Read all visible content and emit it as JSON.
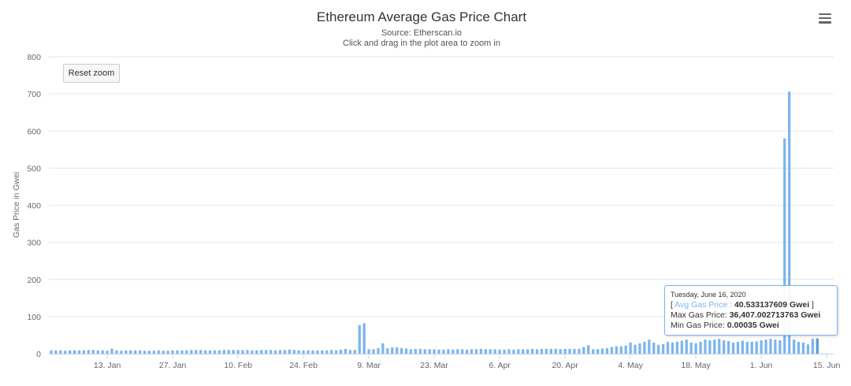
{
  "menu": {
    "icon": "hamburger-menu-icon"
  },
  "reset_zoom_label": "Reset zoom",
  "tooltip": {
    "date": "Tuesday, June 16, 2020",
    "open_bracket": "[",
    "series_name": "Avg Gas Price",
    "sep": ":",
    "avg_value": "40.533137609 Gwei",
    "close_bracket": "]",
    "max_label": "Max Gas Price:",
    "max_value": "36,407.002713763 Gwei",
    "min_label": "Min Gas Price:",
    "min_value": "0.00035 Gwei"
  },
  "chart_data": {
    "type": "bar",
    "title": "Ethereum Average Gas Price Chart",
    "subtitle": "Source: Etherscan.io",
    "subtitle2": "Click and drag in the plot area to zoom in",
    "ylabel": "Gas Price in Gwei",
    "ylim": [
      0,
      800
    ],
    "yticks": [
      0,
      100,
      200,
      300,
      400,
      500,
      600,
      700,
      800
    ],
    "grid": true,
    "legend": "none",
    "bar_color": "#7cb5ec",
    "x_start": "2020-01-01",
    "x_end": "2020-06-17",
    "xticks": [
      {
        "date": "2020-01-13",
        "label": "13. Jan"
      },
      {
        "date": "2020-01-27",
        "label": "27. Jan"
      },
      {
        "date": "2020-02-10",
        "label": "10. Feb"
      },
      {
        "date": "2020-02-24",
        "label": "24. Feb"
      },
      {
        "date": "2020-03-09",
        "label": "9. Mar"
      },
      {
        "date": "2020-03-23",
        "label": "23. Mar"
      },
      {
        "date": "2020-04-06",
        "label": "6. Apr"
      },
      {
        "date": "2020-04-20",
        "label": "20. Apr"
      },
      {
        "date": "2020-05-04",
        "label": "4. May"
      },
      {
        "date": "2020-05-18",
        "label": "18. May"
      },
      {
        "date": "2020-06-01",
        "label": "1. Jun"
      },
      {
        "date": "2020-06-15",
        "label": "15. Jun"
      }
    ],
    "series": [
      {
        "values": [
          9,
          9,
          9,
          8,
          9,
          9,
          9,
          9,
          10,
          10,
          9,
          9,
          8,
          14,
          9,
          8,
          9,
          9,
          9,
          9,
          8,
          8,
          8,
          9,
          8,
          8,
          9,
          9,
          9,
          9,
          10,
          10,
          10,
          9,
          9,
          9,
          9,
          10,
          10,
          10,
          10,
          10,
          10,
          9,
          9,
          10,
          10,
          10,
          9,
          10,
          10,
          11,
          10,
          9,
          9,
          9,
          9,
          9,
          9,
          9,
          10,
          9,
          11,
          13,
          10,
          10,
          77,
          82,
          12,
          12,
          15,
          28,
          15,
          17,
          17,
          15,
          14,
          12,
          13,
          13,
          12,
          12,
          12,
          11,
          11,
          12,
          11,
          12,
          12,
          11,
          12,
          12,
          13,
          12,
          12,
          12,
          11,
          11,
          12,
          11,
          12,
          12,
          12,
          13,
          12,
          13,
          13,
          13,
          13,
          12,
          13,
          13,
          13,
          13,
          18,
          23,
          12,
          12,
          14,
          15,
          18,
          20,
          20,
          22,
          30,
          24,
          28,
          32,
          38,
          30,
          24,
          26,
          32,
          30,
          32,
          35,
          38,
          30,
          28,
          32,
          38,
          36,
          38,
          40,
          36,
          34,
          30,
          32,
          35,
          32,
          32,
          33,
          36,
          38,
          40,
          38,
          36,
          580,
          706,
          38,
          32,
          30,
          25,
          40,
          41
        ]
      }
    ]
  }
}
